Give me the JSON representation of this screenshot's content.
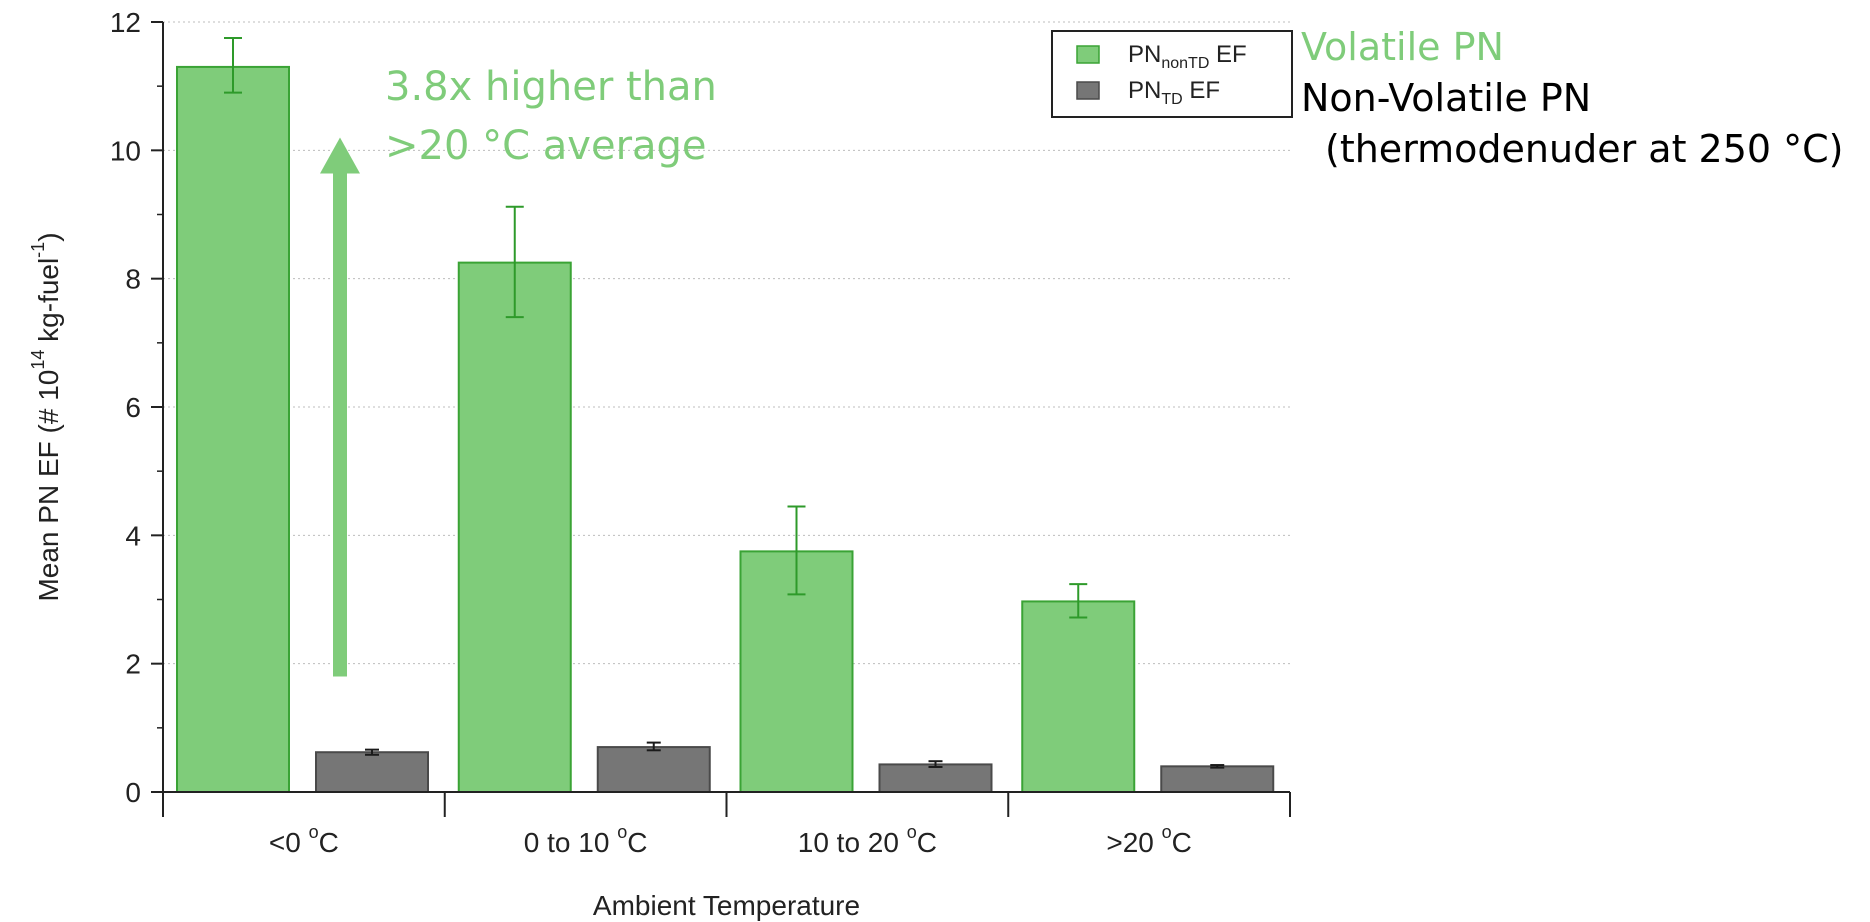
{
  "chart_data": {
    "type": "bar",
    "xlabel": "Ambient Temperature",
    "ylabel": "Mean PN EF (# 10",
    "ylabel_exp": "14",
    "ylabel_unit": " kg-fuel",
    "ylabel_unit_exp": "-1",
    "ylim": [
      0,
      12
    ],
    "yticks": [
      0,
      2,
      4,
      6,
      8,
      10,
      12
    ],
    "grid": true,
    "legend_position": "top-right",
    "categories": [
      {
        "label": "<0 ",
        "sup": "o",
        "unit": "C"
      },
      {
        "label": "0 to 10 ",
        "sup": "o",
        "unit": "C"
      },
      {
        "label": "10 to 20 ",
        "sup": "o",
        "unit": "C"
      },
      {
        "label": ">20 ",
        "sup": "o",
        "unit": "C"
      }
    ],
    "series": [
      {
        "legend_main": "PN",
        "legend_sub": "nonTD",
        "legend_tail": " EF",
        "color": "#7fcc7a",
        "edge": "#3aa335",
        "error_color": "#2e9a2a",
        "values": [
          11.3,
          8.25,
          3.75,
          2.97
        ],
        "errors": [
          [
            10.9,
            11.75
          ],
          [
            7.4,
            9.12
          ],
          [
            3.08,
            4.45
          ],
          [
            2.72,
            3.24
          ]
        ]
      },
      {
        "legend_main": "PN",
        "legend_sub": "TD",
        "legend_tail": " EF",
        "color": "#767676",
        "edge": "#4a4a4a",
        "error_color": "#1a1a1a",
        "values": [
          0.62,
          0.7,
          0.43,
          0.4
        ],
        "errors": [
          [
            0.58,
            0.66
          ],
          [
            0.65,
            0.77
          ],
          [
            0.39,
            0.48
          ],
          [
            0.38,
            0.42
          ]
        ]
      }
    ],
    "annotations": {
      "arrow_text": [
        "3.8x higher than",
        ">20 °C average"
      ],
      "arrow_color": "#7fcc7a",
      "arrow_from_value": 1.8,
      "arrow_to_value": 10.2,
      "volatile_label": "Volatile PN",
      "volatile_color": "#7fcc7a",
      "nonvolatile_label": "Non-Volatile PN",
      "nonvolatile_detail": "(thermodenuder at 250 °C)",
      "nonvolatile_color": "#000000"
    }
  }
}
